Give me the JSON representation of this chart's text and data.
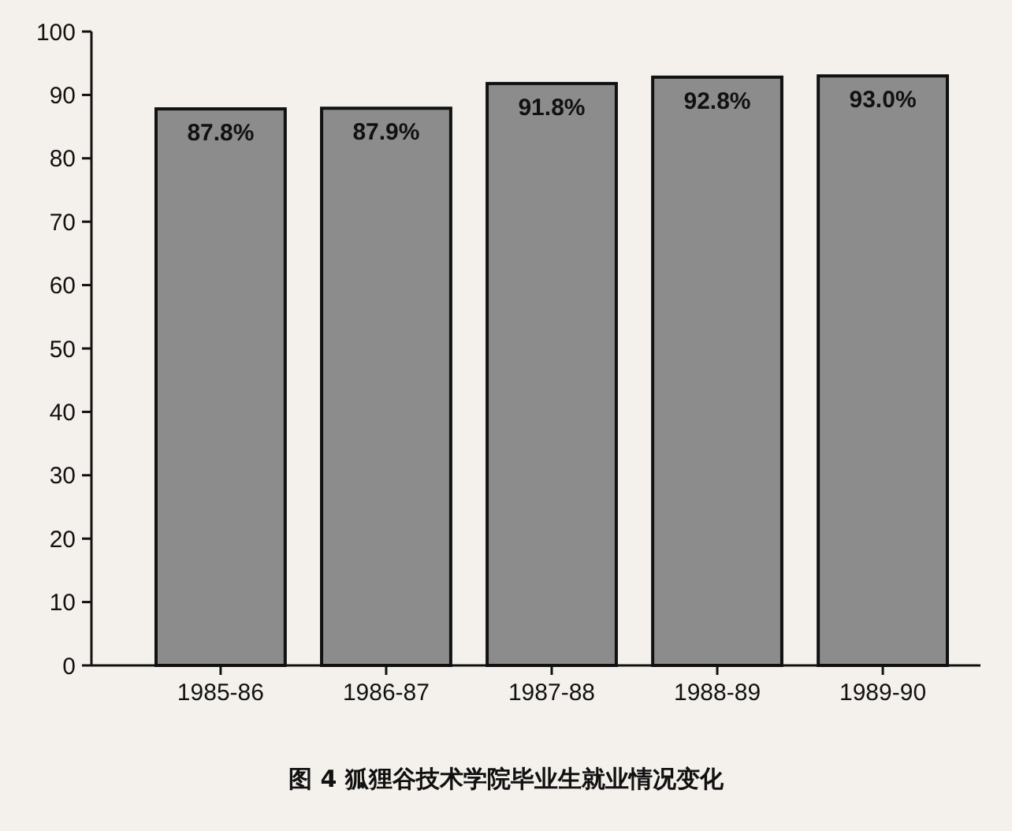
{
  "chart_data": {
    "type": "bar",
    "title": "图 4  狐狸谷技术学院毕业生就业情况变化",
    "categories": [
      "1985-86",
      "1986-87",
      "1987-88",
      "1988-89",
      "1989-90"
    ],
    "values": [
      87.8,
      87.9,
      91.8,
      92.8,
      93.0
    ],
    "value_labels": [
      "87.8%",
      "87.9%",
      "91.8%",
      "92.8%",
      "93.0%"
    ],
    "color": "#8c8c8c",
    "ylim": [
      0,
      100
    ],
    "yticks": [
      0,
      10,
      20,
      30,
      40,
      50,
      60,
      70,
      80,
      90,
      100
    ],
    "grid": false
  }
}
